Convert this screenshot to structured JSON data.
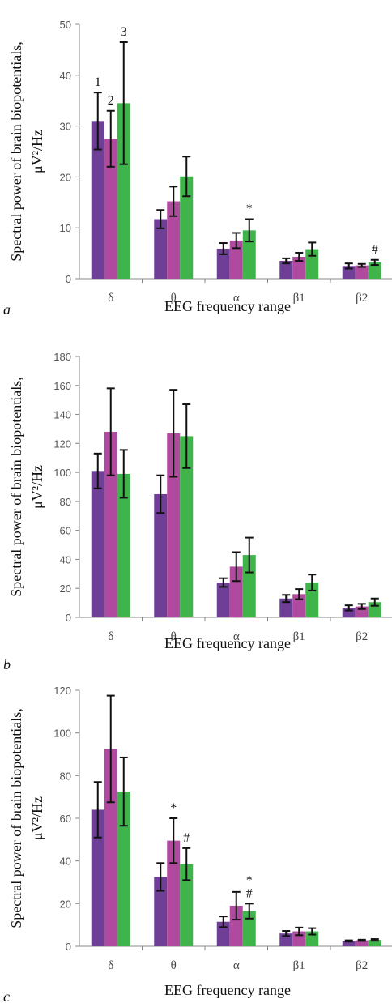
{
  "series_colors": [
    "#6f3f98",
    "#b04a9e",
    "#3fb44a"
  ],
  "chart_data": [
    {
      "type": "bar",
      "panel": "a",
      "xlabel": "EEG frequency range",
      "ylabel_line1": "Spectral power of brain biopotentials,",
      "ylabel_line2": "μV²/Hz",
      "ylim": [
        0,
        50
      ],
      "yticks": [
        0,
        10,
        20,
        30,
        40,
        50
      ],
      "grid": false,
      "categories": [
        "δ",
        "θ",
        "α",
        "β1",
        "β2"
      ],
      "series": [
        {
          "values": [
            31,
            11.7,
            5.9,
            3.5,
            2.5
          ],
          "errors": [
            5.6,
            1.8,
            1.1,
            0.5,
            0.5
          ]
        },
        {
          "values": [
            27.5,
            15.2,
            7.5,
            4.3,
            2.6
          ],
          "errors": [
            5.5,
            2.9,
            1.5,
            0.8,
            0.3
          ]
        },
        {
          "values": [
            34.5,
            20.1,
            9.5,
            5.8,
            3.2
          ],
          "errors": [
            12,
            3.9,
            2.2,
            1.3,
            0.5
          ]
        }
      ],
      "annotations": [
        {
          "text": "1",
          "category": 0,
          "series": 0
        },
        {
          "text": "2",
          "category": 0,
          "series": 1
        },
        {
          "text": "3",
          "category": 0,
          "series": 2
        },
        {
          "text": "*",
          "category": 2,
          "series": 2
        },
        {
          "text": "#",
          "category": 4,
          "series": 2
        }
      ]
    },
    {
      "type": "bar",
      "panel": "b",
      "xlabel": "EEG frequency range",
      "ylabel_line1": "Spectral power of brain biopotentials,",
      "ylabel_line2": "μV²/Hz",
      "ylim": [
        0,
        180
      ],
      "yticks": [
        0,
        20,
        40,
        60,
        80,
        100,
        120,
        140,
        160,
        180
      ],
      "grid": false,
      "categories": [
        "δ",
        "θ",
        "α",
        "β1",
        "β2"
      ],
      "series": [
        {
          "values": [
            101,
            85,
            24,
            13,
            6.5
          ],
          "errors": [
            12,
            13,
            3,
            2.5,
            1.8
          ]
        },
        {
          "values": [
            128,
            127,
            35,
            16,
            7.5
          ],
          "errors": [
            30,
            30,
            10,
            3.5,
            1.8
          ]
        },
        {
          "values": [
            99,
            125,
            43,
            24,
            10.5
          ],
          "errors": [
            16.5,
            22,
            12,
            5.5,
            2.5
          ]
        }
      ],
      "annotations": []
    },
    {
      "type": "bar",
      "panel": "c",
      "xlabel": "EEG frequency range",
      "ylabel_line1": "Spectral power of brain biopotentials,",
      "ylabel_line2": "μV²/Hz",
      "ylim": [
        0,
        120
      ],
      "yticks": [
        0,
        20,
        40,
        60,
        80,
        100,
        120
      ],
      "grid": false,
      "categories": [
        "δ",
        "θ",
        "α",
        "β1",
        "β2"
      ],
      "series": [
        {
          "values": [
            64,
            32.5,
            11.5,
            6,
            2.5
          ],
          "errors": [
            13,
            6.5,
            2.5,
            1.2,
            0.3
          ]
        },
        {
          "values": [
            92.5,
            49.5,
            19,
            7,
            2.8
          ],
          "errors": [
            25,
            10.5,
            6.5,
            1.8,
            0.3
          ]
        },
        {
          "values": [
            72.5,
            38.5,
            16.5,
            7,
            3
          ],
          "errors": [
            16,
            7.5,
            3.5,
            1.5,
            0.4
          ]
        }
      ],
      "annotations": [
        {
          "text": "*",
          "category": 1,
          "series": 1
        },
        {
          "text": "#",
          "category": 1,
          "series": 2
        },
        {
          "text": "*#",
          "category": 2,
          "series": 2
        }
      ]
    }
  ]
}
